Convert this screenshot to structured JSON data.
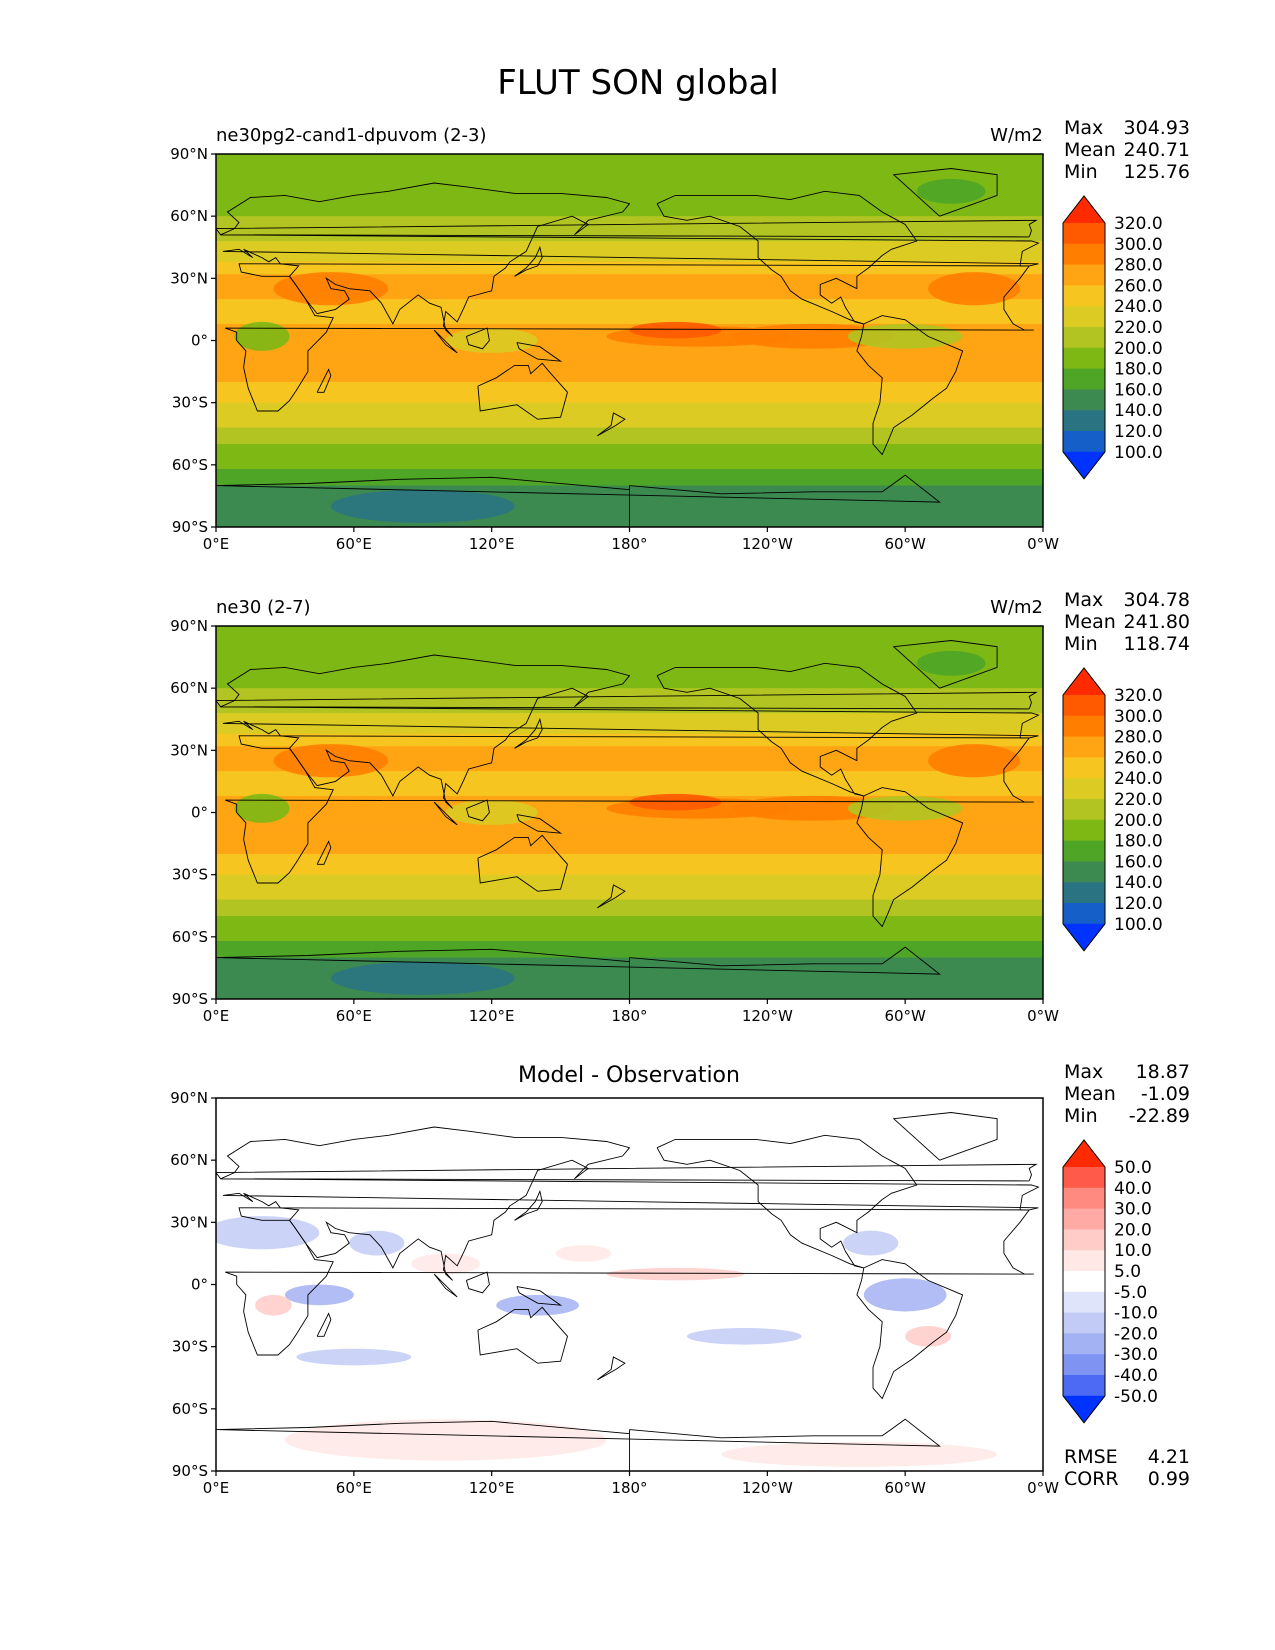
{
  "figure": {
    "title": "FLUT SON global"
  },
  "panels": [
    {
      "id": "test",
      "left_title": "ne30pg2-cand1-dpuvom (2-3)",
      "center_title": "",
      "units": "W/m2",
      "stats": [
        {
          "label": "Max",
          "value": "304.93"
        },
        {
          "label": "Mean",
          "value": "240.71"
        },
        {
          "label": "Min",
          "value": "125.76"
        }
      ],
      "colorbar": {
        "labels": [
          "320.0",
          "300.0",
          "280.0",
          "260.0",
          "240.0",
          "220.0",
          "200.0",
          "180.0",
          "160.0",
          "140.0",
          "120.0",
          "100.0"
        ],
        "colors": [
          "#ff2a00",
          "#ff5a00",
          "#ff7e00",
          "#ffa514",
          "#f7c520",
          "#dccb23",
          "#b1c421",
          "#7db815",
          "#4ea526",
          "#3c8a50",
          "#2a7382",
          "#1560c8",
          "#0033ff"
        ]
      }
    },
    {
      "id": "reference",
      "left_title": "ne30 (2-7)",
      "center_title": "",
      "units": "W/m2",
      "stats": [
        {
          "label": "Max",
          "value": "304.78"
        },
        {
          "label": "Mean",
          "value": "241.80"
        },
        {
          "label": "Min",
          "value": "118.74"
        }
      ],
      "colorbar": {
        "labels": [
          "320.0",
          "300.0",
          "280.0",
          "260.0",
          "240.0",
          "220.0",
          "200.0",
          "180.0",
          "160.0",
          "140.0",
          "120.0",
          "100.0"
        ],
        "colors": [
          "#ff2a00",
          "#ff5a00",
          "#ff7e00",
          "#ffa514",
          "#f7c520",
          "#dccb23",
          "#b1c421",
          "#7db815",
          "#4ea526",
          "#3c8a50",
          "#2a7382",
          "#1560c8",
          "#0033ff"
        ]
      }
    },
    {
      "id": "diff",
      "left_title": "",
      "center_title": "Model - Observation",
      "units": "",
      "stats": [
        {
          "label": "Max",
          "value": "18.87"
        },
        {
          "label": "Mean",
          "value": "-1.09"
        },
        {
          "label": "Min",
          "value": "-22.89"
        }
      ],
      "extra_stats": [
        {
          "label": "RMSE",
          "value": "4.21"
        },
        {
          "label": "CORR",
          "value": "0.99"
        }
      ],
      "colorbar": {
        "labels": [
          "50.0",
          "40.0",
          "30.0",
          "20.0",
          "10.0",
          "5.0",
          "-5.0",
          "-10.0",
          "-20.0",
          "-30.0",
          "-40.0",
          "-50.0"
        ],
        "colors": [
          "#ff2a00",
          "#ff5a4a",
          "#ff8a80",
          "#ffaaa4",
          "#ffccc8",
          "#ffe8e6",
          "#ffffff",
          "#dfe4fb",
          "#c2cbf6",
          "#a3b2f2",
          "#7f93f2",
          "#4d6af5",
          "#0033ff"
        ]
      }
    }
  ],
  "axes": {
    "lat_ticks": [
      "90°N",
      "60°N",
      "30°N",
      "0°",
      "30°S",
      "60°S",
      "90°S"
    ],
    "lon_ticks": [
      "0°E",
      "60°E",
      "120°E",
      "180°",
      "120°W",
      "60°W",
      "0°W"
    ]
  }
}
